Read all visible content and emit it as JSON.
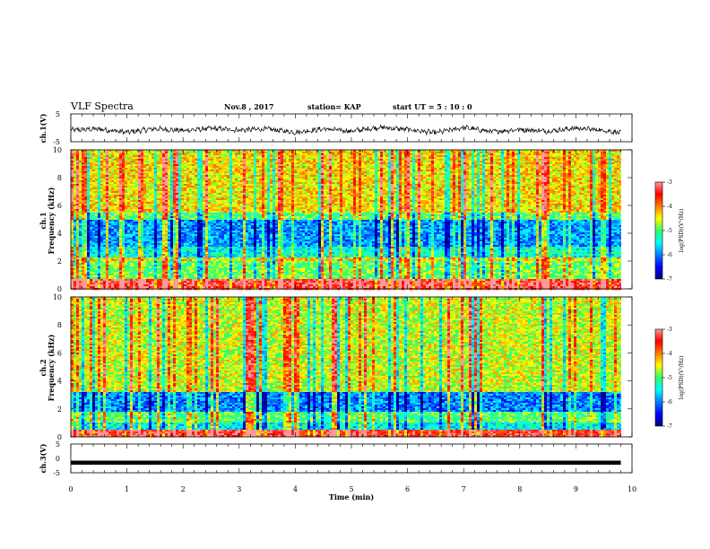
{
  "header": {
    "title": "VLF Spectra",
    "date": "Nov.8 , 2017",
    "station": "station= KAP",
    "start_ut": "start  UT =   5 : 10 : 0"
  },
  "chart_data": [
    {
      "type": "line",
      "ylabel": "ch.1(V)",
      "xlim": [
        0,
        10
      ],
      "ylim": [
        -5,
        5
      ],
      "yticks": [
        "5",
        "-5"
      ],
      "xticks": [
        0,
        1,
        2,
        3,
        4,
        5,
        6,
        7,
        8,
        9,
        10
      ],
      "data_end_min": 9.8,
      "series": [
        {
          "x": [
            0,
            0.5,
            1,
            1.5,
            2,
            2.5,
            3,
            3.5,
            4,
            4.5,
            5,
            5.5,
            6,
            6.5,
            7,
            7.5,
            8,
            8.5,
            9,
            9.5,
            9.8
          ],
          "values": [
            -0.8,
            -0.4,
            -1.6,
            -0.3,
            -1.0,
            -0.2,
            -0.8,
            -0.4,
            -1.6,
            -0.4,
            -1.2,
            0.2,
            -0.6,
            -1.8,
            0.1,
            -1.4,
            -0.6,
            -1.2,
            -0.1,
            -0.9,
            -1.8
          ]
        }
      ]
    },
    {
      "type": "heatmap",
      "ylabel": [
        "ch.1",
        "Frequency  (kHz)"
      ],
      "xlim": [
        0,
        10
      ],
      "ylim": [
        0,
        10
      ],
      "yticks": [
        0,
        2,
        4,
        6,
        8,
        10
      ],
      "data_end_min": 9.8,
      "colorbar": {
        "label": "log(PSD)(V²/Hz)",
        "range": [
          -7,
          -3
        ],
        "ticks": [
          "-3",
          "-4",
          "-5",
          "-6",
          "-7"
        ]
      },
      "band_profile": [
        {
          "f": [
            0,
            0.7
          ],
          "level": -3.3
        },
        {
          "f": [
            0.7,
            2.0
          ],
          "level": -4.9
        },
        {
          "f": [
            2.0,
            2.3
          ],
          "level": -4.4
        },
        {
          "f": [
            2.3,
            3.0
          ],
          "level": -5.4
        },
        {
          "f": [
            3.0,
            5.0
          ],
          "level": -5.9
        },
        {
          "f": [
            5.0,
            5.5
          ],
          "level": -5.0
        },
        {
          "f": [
            5.5,
            10
          ],
          "level": -4.4
        }
      ]
    },
    {
      "type": "heatmap",
      "ylabel": [
        "ch.2",
        "Frequency  (kHz)"
      ],
      "xlim": [
        0,
        10
      ],
      "ylim": [
        0,
        10
      ],
      "yticks": [
        0,
        2,
        4,
        6,
        8,
        10
      ],
      "data_end_min": 9.8,
      "colorbar": {
        "label": "log(PSD)(V²/Hz)",
        "range": [
          -7,
          -3
        ],
        "ticks": [
          "-3",
          "-4",
          "-5",
          "-6",
          "-7"
        ]
      },
      "band_profile": [
        {
          "f": [
            0,
            0.5
          ],
          "level": -3.4
        },
        {
          "f": [
            0.5,
            1.0
          ],
          "level": -5.5
        },
        {
          "f": [
            1.0,
            1.8
          ],
          "level": -5.0
        },
        {
          "f": [
            1.8,
            3.2
          ],
          "level": -6.0
        },
        {
          "f": [
            3.2,
            10
          ],
          "level": -4.6
        }
      ]
    },
    {
      "type": "line",
      "ylabel": "ch.3(V)",
      "xlabel": "Time  (min)",
      "xlim": [
        0,
        10
      ],
      "ylim": [
        -5,
        5
      ],
      "yticks": [
        "5",
        "0",
        "-5"
      ],
      "xticks": [
        0,
        1,
        2,
        3,
        4,
        5,
        6,
        7,
        8,
        9,
        10
      ],
      "data_end_min": 9.8,
      "series": [
        {
          "x": [
            0,
            9.8
          ],
          "values": [
            -1.5,
            -1.5
          ]
        }
      ]
    }
  ]
}
